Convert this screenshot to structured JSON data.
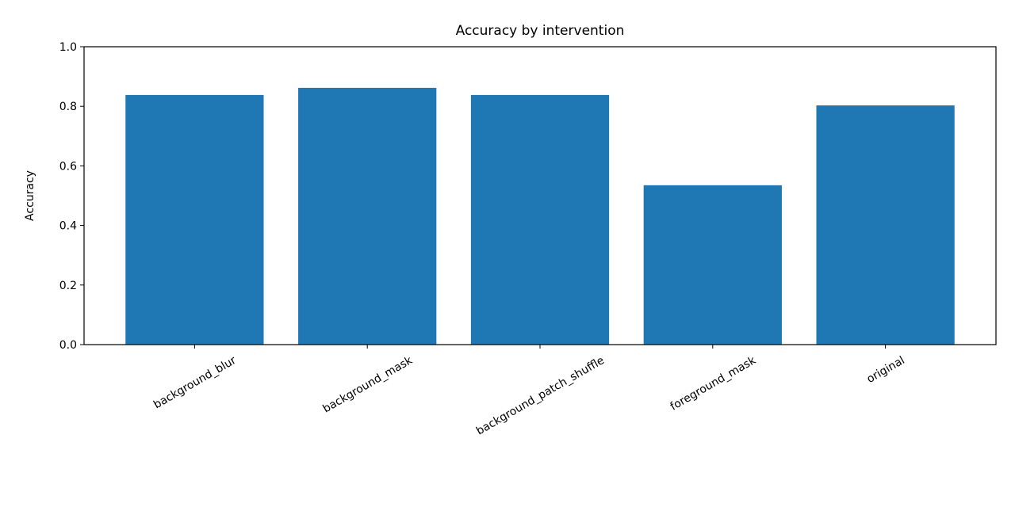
{
  "chart_data": {
    "type": "bar",
    "title": "Accuracy by intervention",
    "y_label": "Accuracy",
    "categories": [
      "background_blur",
      "background_mask",
      "background_patch_shuffle",
      "foreground_mask",
      "original"
    ],
    "values": [
      0.838,
      0.862,
      0.838,
      0.535,
      0.803
    ],
    "color": "#1f77b4",
    "ylim": [
      0,
      1
    ],
    "yticks": [
      {
        "value": 0,
        "label": "0.0"
      },
      0.2,
      0.4,
      0.6,
      0.8,
      {
        "value": 1,
        "label": "1.0"
      }
    ]
  }
}
